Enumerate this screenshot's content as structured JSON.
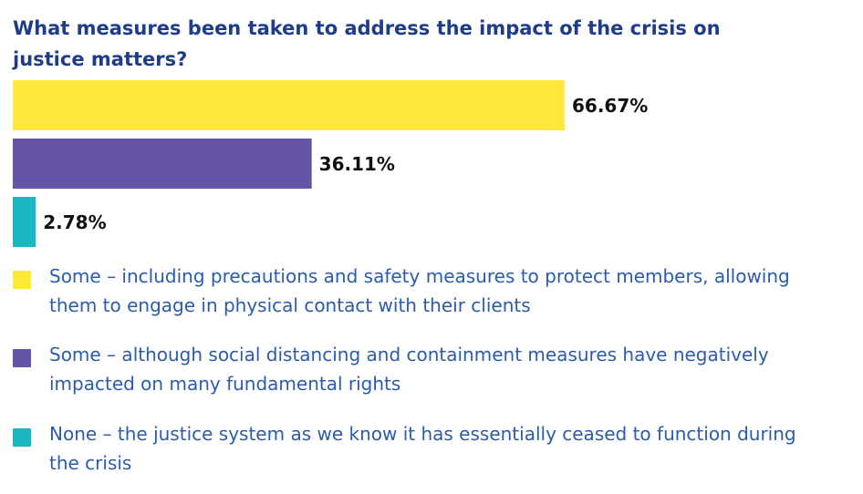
{
  "chart_data": {
    "type": "bar",
    "orientation": "horizontal",
    "title": "What measures been taken to address the impact of the crisis on justice matters?",
    "categories": [
      "Some – including precautions and safety measures to protect members, allowing them to engage in physical contact with their clients",
      "Some – although social distancing and containment measures have negatively impacted on many fundamental rights",
      "None – the justice system as we know it has essentially ceased to function during the crisis"
    ],
    "values": [
      66.67,
      36.11,
      2.78
    ],
    "value_labels": [
      "66.67%",
      "36.11%",
      "2.78%"
    ],
    "colors": [
      "#ffe93f",
      "#6655a6",
      "#1ab7c0"
    ],
    "legend": true
  }
}
